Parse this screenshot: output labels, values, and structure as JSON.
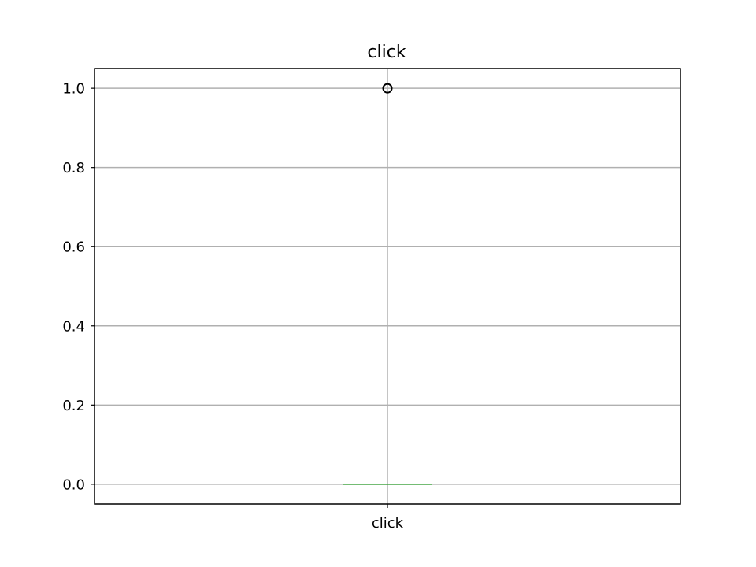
{
  "chart_data": {
    "type": "box",
    "title": "click",
    "xlabel": "",
    "ylabel": "",
    "categories": [
      "click"
    ],
    "series": [
      {
        "q1": 0.0,
        "median": 0.0,
        "q3": 0.0,
        "whisker_low": 0.0,
        "whisker_high": 0.0,
        "outliers": [
          1.0
        ]
      }
    ],
    "ylim": [
      -0.05,
      1.05
    ],
    "yticks": [
      0.0,
      0.2,
      0.4,
      0.6,
      0.8,
      1.0
    ],
    "ytick_labels": [
      "0.0",
      "0.2",
      "0.4",
      "0.6",
      "0.8",
      "1.0"
    ],
    "grid": true,
    "legend": "none"
  },
  "colors": {
    "median": "#2ca02c",
    "box": "#000000",
    "grid": "#b0b0b0",
    "outlier": "#000000"
  }
}
